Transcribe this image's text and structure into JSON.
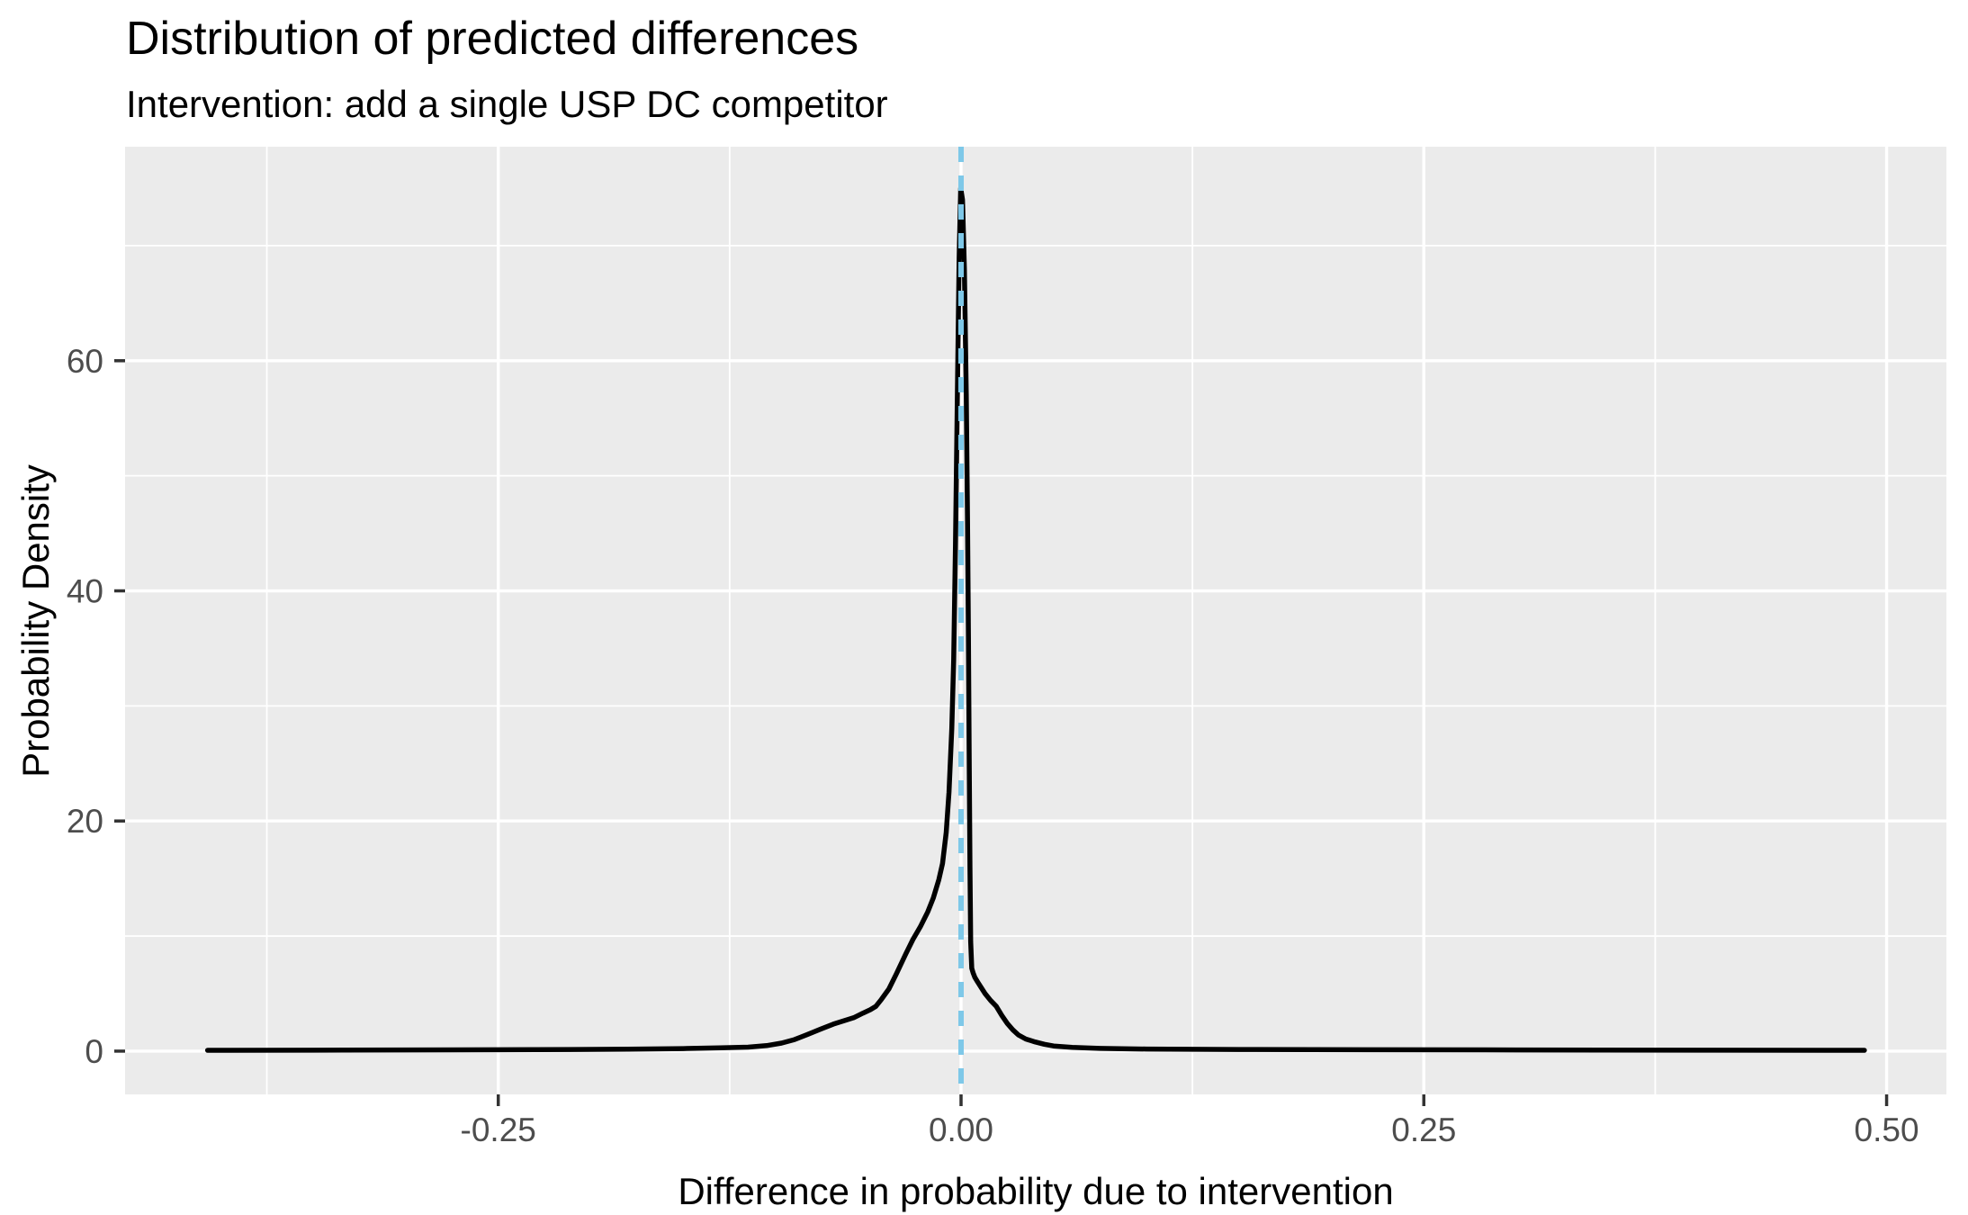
{
  "chart_data": {
    "type": "line",
    "title": "Distribution of predicted differences",
    "subtitle": "Intervention: add a single USP DC competitor",
    "xlabel": "Difference in probability due to intervention",
    "ylabel": "Probability Density",
    "xlim": [
      -0.4516,
      0.5323
    ],
    "ylim": [
      -3.76,
      78.6
    ],
    "x_ticks": [
      -0.25,
      0.0,
      0.25,
      0.5
    ],
    "x_tick_labels": [
      "-0.25",
      "0.00",
      "0.25",
      "0.50"
    ],
    "x_minor_ticks": [
      -0.375,
      -0.125,
      0.125,
      0.375
    ],
    "y_ticks": [
      0,
      20,
      40,
      60
    ],
    "y_tick_labels": [
      "0",
      "20",
      "40",
      "60"
    ],
    "y_minor_ticks": [
      10,
      30,
      50,
      70
    ],
    "grid": true,
    "legend": "none",
    "reference_line": {
      "x": 0.0,
      "orientation": "vertical",
      "style": "dashed",
      "color": "#7EC8E8"
    },
    "theme": {
      "panel_background": "#EBEBEB",
      "grid_color": "#FFFFFF",
      "curve_color": "#000000",
      "tick_mark_color": "#333333",
      "tick_label_color": "#4D4D4D",
      "title_color": "#000000"
    },
    "series": [
      {
        "name": "predicted-difference-density",
        "color": "#000000",
        "points": [
          [
            -0.407,
            0.07
          ],
          [
            -0.35,
            0.08
          ],
          [
            -0.3,
            0.1
          ],
          [
            -0.25,
            0.12
          ],
          [
            -0.21,
            0.14
          ],
          [
            -0.18,
            0.17
          ],
          [
            -0.15,
            0.22
          ],
          [
            -0.13,
            0.28
          ],
          [
            -0.115,
            0.35
          ],
          [
            -0.105,
            0.48
          ],
          [
            -0.097,
            0.7
          ],
          [
            -0.09,
            1.0
          ],
          [
            -0.083,
            1.45
          ],
          [
            -0.076,
            1.9
          ],
          [
            -0.069,
            2.35
          ],
          [
            -0.063,
            2.65
          ],
          [
            -0.058,
            2.9
          ],
          [
            -0.053,
            3.3
          ],
          [
            -0.049,
            3.6
          ],
          [
            -0.046,
            3.9
          ],
          [
            -0.043,
            4.5
          ],
          [
            -0.039,
            5.4
          ],
          [
            -0.035,
            6.7
          ],
          [
            -0.03,
            8.4
          ],
          [
            -0.026,
            9.7
          ],
          [
            -0.022,
            10.8
          ],
          [
            -0.018,
            12.1
          ],
          [
            -0.015,
            13.3
          ],
          [
            -0.012,
            14.9
          ],
          [
            -0.01,
            16.3
          ],
          [
            -0.008,
            19.0
          ],
          [
            -0.0065,
            22.5
          ],
          [
            -0.005,
            28.0
          ],
          [
            -0.004,
            34.0
          ],
          [
            -0.003,
            44.0
          ],
          [
            -0.002,
            57.0
          ],
          [
            -0.001,
            69.0
          ],
          [
            -0.0002,
            75.0
          ],
          [
            0.0008,
            74.0
          ],
          [
            0.0018,
            68.0
          ],
          [
            0.0028,
            57.0
          ],
          [
            0.0035,
            46.0
          ],
          [
            0.004,
            36.0
          ],
          [
            0.0044,
            26.0
          ],
          [
            0.0048,
            16.0
          ],
          [
            0.0052,
            9.5
          ],
          [
            0.0058,
            7.2
          ],
          [
            0.0065,
            6.8
          ],
          [
            0.0075,
            6.4
          ],
          [
            0.009,
            6.0
          ],
          [
            0.011,
            5.5
          ],
          [
            0.013,
            5.0
          ],
          [
            0.016,
            4.4
          ],
          [
            0.019,
            3.9
          ],
          [
            0.022,
            3.1
          ],
          [
            0.025,
            2.4
          ],
          [
            0.028,
            1.85
          ],
          [
            0.031,
            1.4
          ],
          [
            0.035,
            1.05
          ],
          [
            0.04,
            0.8
          ],
          [
            0.045,
            0.6
          ],
          [
            0.05,
            0.45
          ],
          [
            0.06,
            0.32
          ],
          [
            0.075,
            0.24
          ],
          [
            0.1,
            0.18
          ],
          [
            0.15,
            0.14
          ],
          [
            0.22,
            0.12
          ],
          [
            0.3,
            0.1
          ],
          [
            0.4,
            0.08
          ],
          [
            0.488,
            0.07
          ]
        ]
      }
    ]
  }
}
